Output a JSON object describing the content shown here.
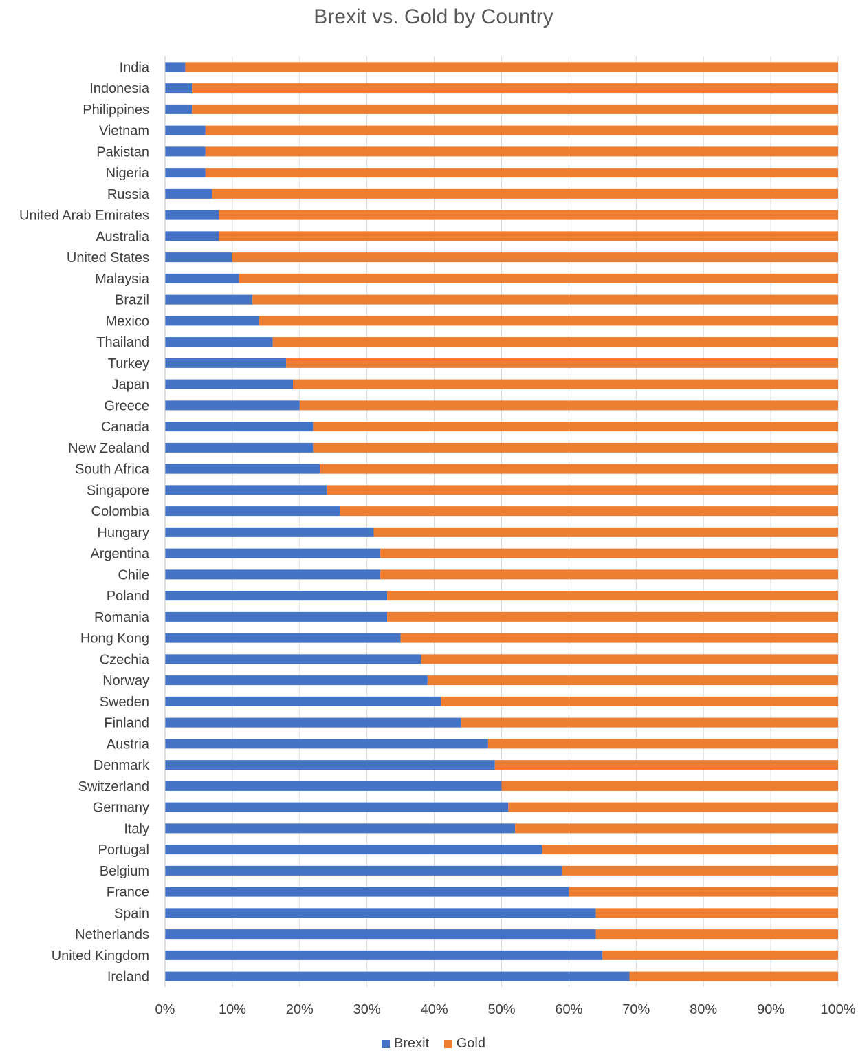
{
  "chart_data": {
    "type": "bar",
    "orientation": "horizontal",
    "stacked": "percent",
    "title": "Brexit vs. Gold by Country",
    "xlim": [
      0,
      100
    ],
    "x_ticks": [
      "0%",
      "10%",
      "20%",
      "30%",
      "40%",
      "50%",
      "60%",
      "70%",
      "80%",
      "90%",
      "100%"
    ],
    "grid": "vertical",
    "legend_position": "bottom",
    "categories": [
      "India",
      "Indonesia",
      "Philippines",
      "Vietnam",
      "Pakistan",
      "Nigeria",
      "Russia",
      "United Arab Emirates",
      "Australia",
      "United States",
      "Malaysia",
      "Brazil",
      "Mexico",
      "Thailand",
      "Turkey",
      "Japan",
      "Greece",
      "Canada",
      "New Zealand",
      "South Africa",
      "Singapore",
      "Colombia",
      "Hungary",
      "Argentina",
      "Chile",
      "Poland",
      "Romania",
      "Hong Kong",
      "Czechia",
      "Norway",
      "Sweden",
      "Finland",
      "Austria",
      "Denmark",
      "Switzerland",
      "Germany",
      "Italy",
      "Portugal",
      "Belgium",
      "France",
      "Spain",
      "Netherlands",
      "United Kingdom",
      "Ireland"
    ],
    "series": [
      {
        "name": "Brexit",
        "color": "#4472C4",
        "values": [
          3,
          4,
          4,
          6,
          6,
          6,
          7,
          8,
          8,
          10,
          11,
          13,
          14,
          16,
          18,
          19,
          20,
          22,
          22,
          23,
          24,
          26,
          31,
          32,
          32,
          33,
          33,
          35,
          38,
          39,
          41,
          44,
          48,
          49,
          50,
          51,
          52,
          56,
          59,
          60,
          64,
          64,
          65,
          69
        ]
      },
      {
        "name": "Gold",
        "color": "#ED7D31",
        "values": [
          97,
          96,
          96,
          94,
          94,
          94,
          93,
          92,
          92,
          90,
          89,
          87,
          86,
          84,
          82,
          81,
          80,
          78,
          78,
          77,
          76,
          74,
          69,
          68,
          68,
          67,
          67,
          65,
          62,
          61,
          59,
          56,
          52,
          51,
          50,
          49,
          48,
          44,
          41,
          40,
          36,
          36,
          35,
          31
        ]
      }
    ]
  }
}
